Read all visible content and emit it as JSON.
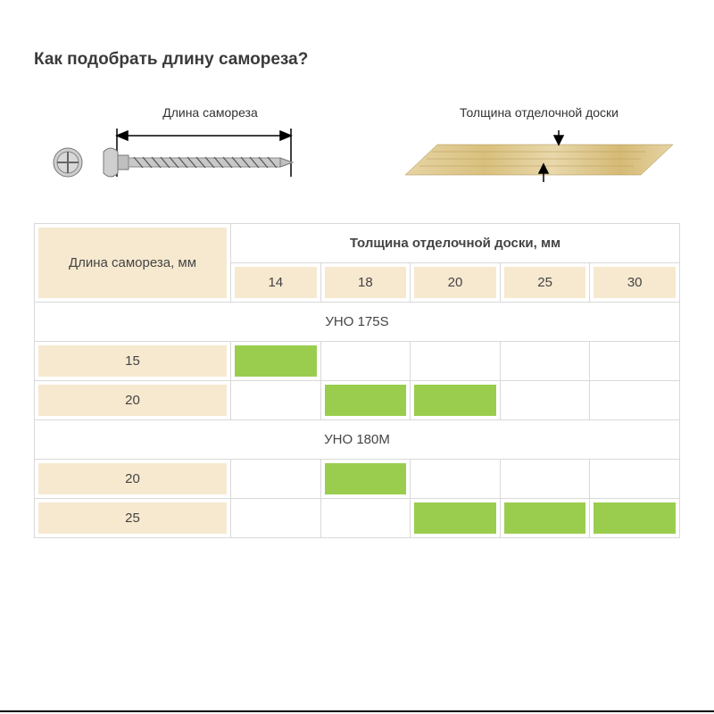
{
  "title": "Как подобрать длину самореза?",
  "diagram": {
    "screw_label": "Длина самореза",
    "board_label": "Толщина отделочной доски"
  },
  "table": {
    "header_left": "Длина самореза, мм",
    "header_span": "Толщина отделочной доски, мм",
    "thickness_cols": [
      "14",
      "18",
      "20",
      "25",
      "30"
    ],
    "sections": [
      {
        "name": "УНО 175S",
        "rows": [
          {
            "len": "15",
            "fill": [
              true,
              false,
              false,
              false,
              false
            ]
          },
          {
            "len": "20",
            "fill": [
              false,
              true,
              true,
              false,
              false
            ]
          }
        ]
      },
      {
        "name": "УНО 180M",
        "rows": [
          {
            "len": "20",
            "fill": [
              false,
              true,
              false,
              false,
              false
            ]
          },
          {
            "len": "25",
            "fill": [
              false,
              false,
              true,
              true,
              true
            ]
          }
        ]
      }
    ]
  },
  "colors": {
    "beige": "#f6e9cf",
    "green": "#9acd4e",
    "border": "#d9d9d9",
    "text": "#444444",
    "title": "#3a3a3a"
  }
}
